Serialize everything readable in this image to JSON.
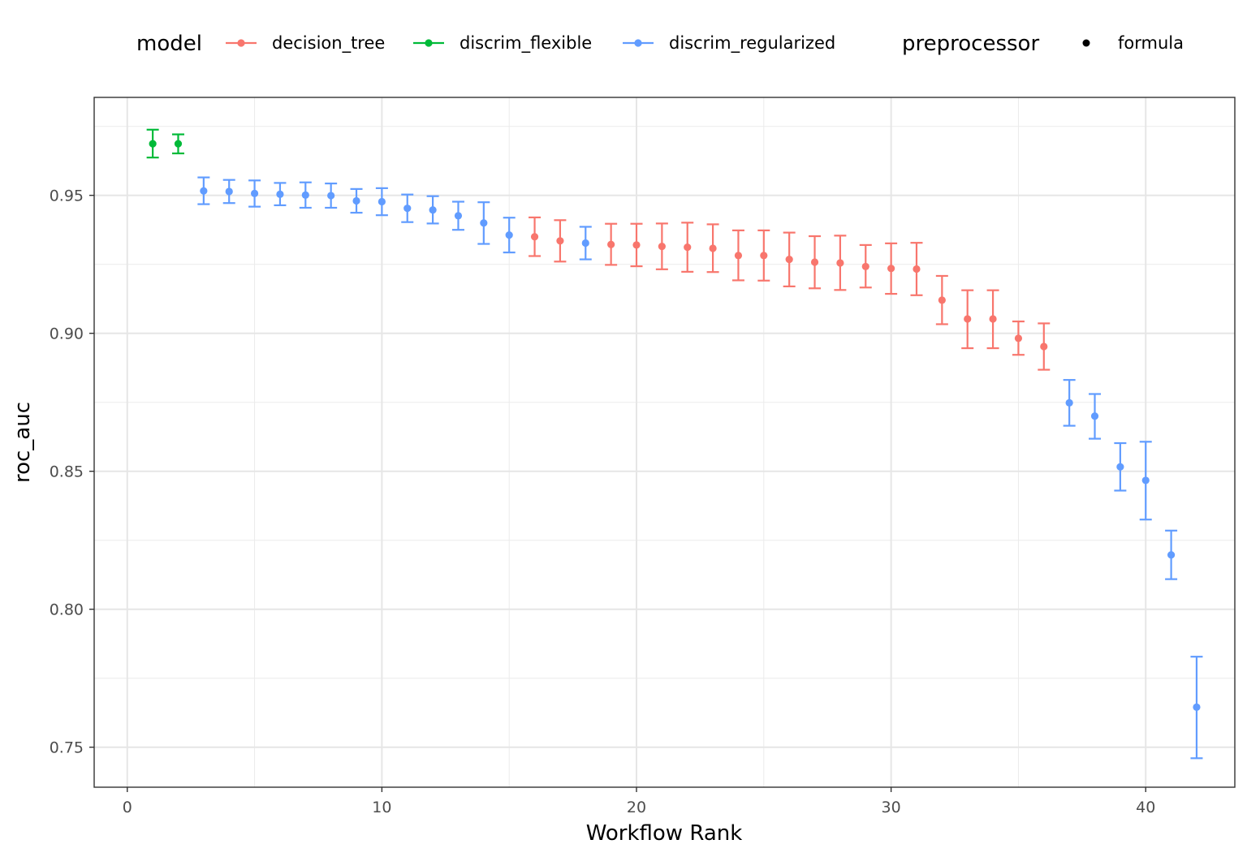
{
  "chart_data": {
    "type": "scatter",
    "xlabel": "Workflow Rank",
    "ylabel": "roc_auc",
    "xlim": [
      -1.3,
      43.5
    ],
    "ylim": [
      0.7355,
      0.9855
    ],
    "xticks": [
      0,
      10,
      20,
      30,
      40
    ],
    "xtick_labels": [
      "0",
      "10",
      "20",
      "30",
      "40"
    ],
    "yticks": [
      0.75,
      0.8,
      0.85,
      0.9,
      0.95
    ],
    "ytick_labels": [
      "0.75",
      "0.80",
      "0.85",
      "0.90",
      "0.95"
    ],
    "grid": true,
    "legend_position": "top",
    "legend": {
      "model_title": "model",
      "preprocessor_title": "preprocessor",
      "preprocessor_items": [
        "formula"
      ]
    },
    "series": [
      {
        "name": "decision_tree",
        "color": "#F8766D",
        "points": [
          {
            "x": 16,
            "y": 0.935,
            "lo": 0.928,
            "hi": 0.942
          },
          {
            "x": 17,
            "y": 0.9335,
            "lo": 0.926,
            "hi": 0.941
          },
          {
            "x": 19,
            "y": 0.9322,
            "lo": 0.9248,
            "hi": 0.9397
          },
          {
            "x": 20,
            "y": 0.932,
            "lo": 0.9243,
            "hi": 0.9397
          },
          {
            "x": 21,
            "y": 0.9315,
            "lo": 0.9232,
            "hi": 0.9398
          },
          {
            "x": 22,
            "y": 0.9312,
            "lo": 0.9223,
            "hi": 0.9401
          },
          {
            "x": 23,
            "y": 0.9308,
            "lo": 0.9222,
            "hi": 0.9395
          },
          {
            "x": 24,
            "y": 0.9282,
            "lo": 0.9192,
            "hi": 0.9373
          },
          {
            "x": 25,
            "y": 0.9282,
            "lo": 0.9191,
            "hi": 0.9373
          },
          {
            "x": 26,
            "y": 0.9268,
            "lo": 0.917,
            "hi": 0.9365
          },
          {
            "x": 27,
            "y": 0.9258,
            "lo": 0.9163,
            "hi": 0.9352
          },
          {
            "x": 28,
            "y": 0.9255,
            "lo": 0.9157,
            "hi": 0.9354
          },
          {
            "x": 29,
            "y": 0.9242,
            "lo": 0.9166,
            "hi": 0.932
          },
          {
            "x": 30,
            "y": 0.9235,
            "lo": 0.9143,
            "hi": 0.9326
          },
          {
            "x": 31,
            "y": 0.9233,
            "lo": 0.9138,
            "hi": 0.9328
          },
          {
            "x": 32,
            "y": 0.912,
            "lo": 0.9033,
            "hi": 0.9208
          },
          {
            "x": 33,
            "y": 0.9052,
            "lo": 0.8946,
            "hi": 0.9156
          },
          {
            "x": 34,
            "y": 0.9052,
            "lo": 0.8946,
            "hi": 0.9156
          },
          {
            "x": 35,
            "y": 0.8982,
            "lo": 0.8922,
            "hi": 0.9043
          },
          {
            "x": 36,
            "y": 0.8952,
            "lo": 0.8868,
            "hi": 0.9036
          }
        ]
      },
      {
        "name": "discrim_flexible",
        "color": "#00BA38",
        "points": [
          {
            "x": 1,
            "y": 0.9687,
            "lo": 0.9637,
            "hi": 0.9738
          },
          {
            "x": 2,
            "y": 0.9687,
            "lo": 0.9652,
            "hi": 0.9721
          }
        ]
      },
      {
        "name": "discrim_regularized",
        "color": "#619CFF",
        "points": [
          {
            "x": 3,
            "y": 0.9516,
            "lo": 0.9468,
            "hi": 0.9565
          },
          {
            "x": 4,
            "y": 0.9514,
            "lo": 0.9472,
            "hi": 0.9556
          },
          {
            "x": 5,
            "y": 0.9507,
            "lo": 0.9459,
            "hi": 0.9554
          },
          {
            "x": 6,
            "y": 0.9504,
            "lo": 0.9464,
            "hi": 0.9545
          },
          {
            "x": 7,
            "y": 0.9501,
            "lo": 0.9455,
            "hi": 0.9547
          },
          {
            "x": 8,
            "y": 0.9499,
            "lo": 0.9455,
            "hi": 0.9543
          },
          {
            "x": 9,
            "y": 0.948,
            "lo": 0.9437,
            "hi": 0.9523
          },
          {
            "x": 10,
            "y": 0.9477,
            "lo": 0.9428,
            "hi": 0.9526
          },
          {
            "x": 11,
            "y": 0.9453,
            "lo": 0.9403,
            "hi": 0.9503
          },
          {
            "x": 12,
            "y": 0.9447,
            "lo": 0.9398,
            "hi": 0.9497
          },
          {
            "x": 13,
            "y": 0.9426,
            "lo": 0.9375,
            "hi": 0.9477
          },
          {
            "x": 14,
            "y": 0.94,
            "lo": 0.9324,
            "hi": 0.9475
          },
          {
            "x": 15,
            "y": 0.9356,
            "lo": 0.9293,
            "hi": 0.9419
          },
          {
            "x": 18,
            "y": 0.9327,
            "lo": 0.9268,
            "hi": 0.9386
          },
          {
            "x": 37,
            "y": 0.8748,
            "lo": 0.8665,
            "hi": 0.8831
          },
          {
            "x": 38,
            "y": 0.87,
            "lo": 0.8618,
            "hi": 0.878
          },
          {
            "x": 39,
            "y": 0.8516,
            "lo": 0.843,
            "hi": 0.8602
          },
          {
            "x": 40,
            "y": 0.8467,
            "lo": 0.8325,
            "hi": 0.8607
          },
          {
            "x": 41,
            "y": 0.8197,
            "lo": 0.8109,
            "hi": 0.8285
          },
          {
            "x": 42,
            "y": 0.7645,
            "lo": 0.746,
            "hi": 0.7828
          }
        ]
      }
    ]
  }
}
